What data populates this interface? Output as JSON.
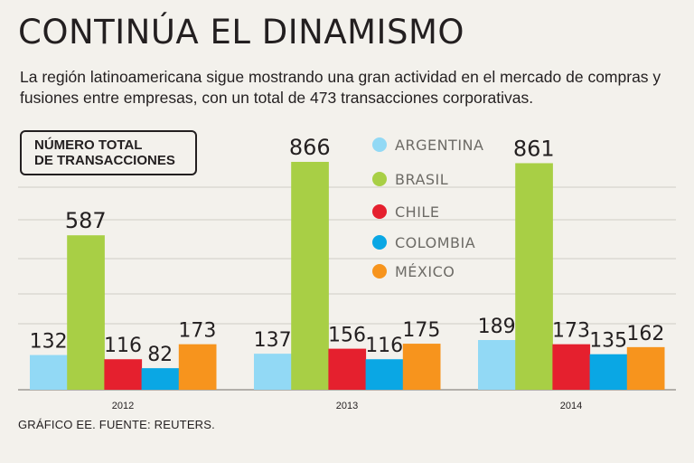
{
  "header": {
    "title": "CONTINÚA EL DINAMISMO",
    "subtitle": "La región latinoamericana sigue mostrando una gran actividad en el mercado de compras y fusiones entre empresas, con un total de 473 transacciones corporativas."
  },
  "badge": {
    "line1": "NÚMERO TOTAL",
    "line2": "DE TRANSACCIONES"
  },
  "footer": {
    "source": "GRÁFICO EE. FUENTE:  REUTERS."
  },
  "chart_data": {
    "type": "bar",
    "title": "NÚMERO TOTAL DE TRANSACCIONES",
    "categories": [
      "2012",
      "2013",
      "2014"
    ],
    "series": [
      {
        "name": "ARGENTINA",
        "color": "#92d9f5",
        "values": [
          132,
          137,
          189
        ]
      },
      {
        "name": "BRASIL",
        "color": "#a8cf45",
        "values": [
          587,
          866,
          861
        ]
      },
      {
        "name": "CHILE",
        "color": "#e5202e",
        "values": [
          116,
          156,
          173
        ]
      },
      {
        "name": "COLOMBIA",
        "color": "#0aa7e4",
        "values": [
          82,
          116,
          135
        ]
      },
      {
        "name": "MÉXICO",
        "color": "#f7941d",
        "values": [
          173,
          175,
          162
        ]
      }
    ],
    "ylim": [
      0,
      900
    ],
    "grid": true,
    "legend": "top-center"
  }
}
